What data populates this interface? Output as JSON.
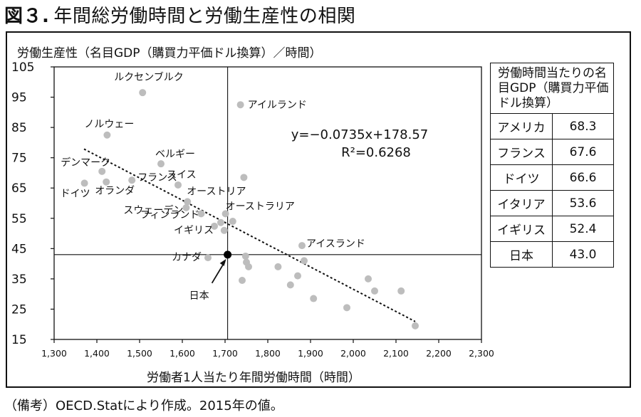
{
  "figure": {
    "number": "図３.",
    "title": "年間総労働時間と労働生産性の相関",
    "note": "（備考）OECD.Statにより作成。2015年の値。"
  },
  "chart_data": {
    "type": "scatter",
    "ylabel": "労働生産性（名目GDP（購買力平価ドル換算）／時間）",
    "xlabel": "労働者1人当たり年間労働時間（時間）",
    "xlim": [
      1300,
      2300
    ],
    "ylim": [
      15,
      105
    ],
    "x_ticks": [
      "1,300",
      "1,400",
      "1,500",
      "1,600",
      "1,700",
      "1,800",
      "1,900",
      "2,000",
      "2,100",
      "2,200",
      "2,300"
    ],
    "y_ticks": [
      "15",
      "25",
      "35",
      "45",
      "55",
      "65",
      "75",
      "85",
      "95",
      "105"
    ],
    "grid": false,
    "crosshair": {
      "x": 1706,
      "y": 43.0
    },
    "equation": "y=−0.0735x+178.57",
    "r2": "R²=0.6268",
    "trendline": {
      "slope": -0.0735,
      "intercept": 178.57,
      "x_range": [
        1370,
        2145
      ]
    },
    "points": [
      {
        "x": 1507,
        "y": 96.5,
        "label": "ルクセンブルク"
      },
      {
        "x": 1736,
        "y": 92.5,
        "label": "アイルランド"
      },
      {
        "x": 1424,
        "y": 82.5,
        "label": "ノルウェー"
      },
      {
        "x": 1550,
        "y": 73.0,
        "label": "ベルギー"
      },
      {
        "x": 1412,
        "y": 70.5,
        "label": "デンマーク"
      },
      {
        "x": 1371,
        "y": 66.6,
        "label": "ドイツ"
      },
      {
        "x": 1422,
        "y": 67.0,
        "label": "オランダ"
      },
      {
        "x": 1482,
        "y": 67.6,
        "label": "フランス"
      },
      {
        "x": 1590,
        "y": 66.0,
        "label": "スイス"
      },
      {
        "x": 1612,
        "y": 60.5,
        "label": "オーストリア"
      },
      {
        "x": 1609,
        "y": 58.5,
        "label": "スウェーデン"
      },
      {
        "x": 1644,
        "y": 56.5,
        "label": "フィンランド"
      },
      {
        "x": 1690,
        "y": 53.6,
        "label": "イタリア"
      },
      {
        "x": 1675,
        "y": 52.4,
        "label": "イギリス"
      },
      {
        "x": 1701,
        "y": 56.5,
        "label": "オーストラリア"
      },
      {
        "x": 1660,
        "y": 42.0,
        "label": "カナダ"
      },
      {
        "x": 1706,
        "y": 43.0,
        "label": "日本"
      },
      {
        "x": 1880,
        "y": 46.0,
        "label": "アイスランド"
      },
      {
        "x": 1744,
        "y": 68.5,
        "label": ""
      },
      {
        "x": 1698,
        "y": 51.0,
        "label": ""
      },
      {
        "x": 1718,
        "y": 54.0,
        "label": ""
      },
      {
        "x": 1748,
        "y": 42.5,
        "label": ""
      },
      {
        "x": 1750,
        "y": 40.5,
        "label": ""
      },
      {
        "x": 1755,
        "y": 39.0,
        "label": ""
      },
      {
        "x": 1740,
        "y": 34.5,
        "label": ""
      },
      {
        "x": 1824,
        "y": 39.0,
        "label": ""
      },
      {
        "x": 1853,
        "y": 33.0,
        "label": ""
      },
      {
        "x": 1870,
        "y": 36.0,
        "label": ""
      },
      {
        "x": 1885,
        "y": 41.0,
        "label": ""
      },
      {
        "x": 1907,
        "y": 28.5,
        "label": ""
      },
      {
        "x": 1985,
        "y": 25.5,
        "label": ""
      },
      {
        "x": 2035,
        "y": 35.0,
        "label": ""
      },
      {
        "x": 2050,
        "y": 31.0,
        "label": ""
      },
      {
        "x": 2112,
        "y": 31.0,
        "label": ""
      },
      {
        "x": 2145,
        "y": 19.5,
        "label": ""
      }
    ]
  },
  "side_table": {
    "header": "労働時間当たりの名目GDP（購買力平価ドル換算）",
    "rows": [
      {
        "country": "アメリカ",
        "value": "68.3"
      },
      {
        "country": "フランス",
        "value": "67.6"
      },
      {
        "country": "ドイツ",
        "value": "66.6"
      },
      {
        "country": "イタリア",
        "value": "53.6"
      },
      {
        "country": "イギリス",
        "value": "52.4"
      },
      {
        "country": "日本",
        "value": "43.0"
      }
    ]
  },
  "colors": {
    "point": "#bdbdbd",
    "highlight": "#000000",
    "axis": "#111111"
  }
}
